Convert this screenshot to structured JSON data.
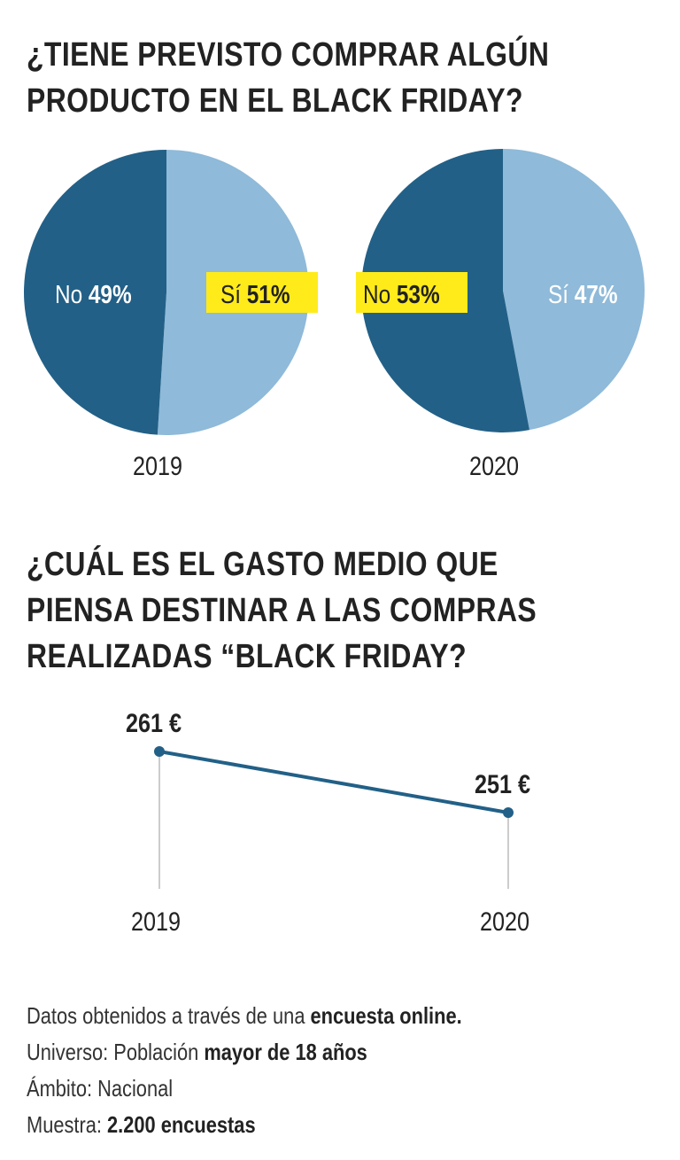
{
  "colors": {
    "no": "#226087",
    "si": "#8fbad9",
    "highlight": "#ffeb1a",
    "line": "#226087",
    "text": "#222222"
  },
  "title1": [
    "¿TIENE PREVISTO COMPRAR ALGÚN",
    "PRODUCTO EN EL BLACK FRIDAY?"
  ],
  "title2": [
    "¿CUÁL ES EL GASTO MEDIO QUE",
    "PIENSA DESTINAR A LAS COMPRAS",
    "REALIZADAS “BLACK FRIDAY?"
  ],
  "chart_data": [
    {
      "type": "pie",
      "title": "2019",
      "slices": [
        {
          "label": "Sí",
          "value": 51,
          "display": "51%",
          "highlighted": true
        },
        {
          "label": "No",
          "value": 49,
          "display": "49%",
          "highlighted": false
        }
      ]
    },
    {
      "type": "pie",
      "title": "2020",
      "slices": [
        {
          "label": "Sí",
          "value": 47,
          "display": "47%",
          "highlighted": false
        },
        {
          "label": "No",
          "value": 53,
          "display": "53%",
          "highlighted": true
        }
      ]
    },
    {
      "type": "line",
      "categories": [
        "2019",
        "2020"
      ],
      "values": [
        261,
        251
      ],
      "labels": [
        "261 €",
        "251 €"
      ]
    }
  ],
  "footnote": [
    {
      "text": "Datos obtenidos a través de una ",
      "bold": "encuesta online."
    },
    {
      "text": "Universo: Población ",
      "bold": "mayor de 18 años"
    },
    {
      "text": "Ámbito: Nacional",
      "bold": ""
    },
    {
      "text": "Muestra: ",
      "bold": "2.200 encuestas"
    }
  ]
}
